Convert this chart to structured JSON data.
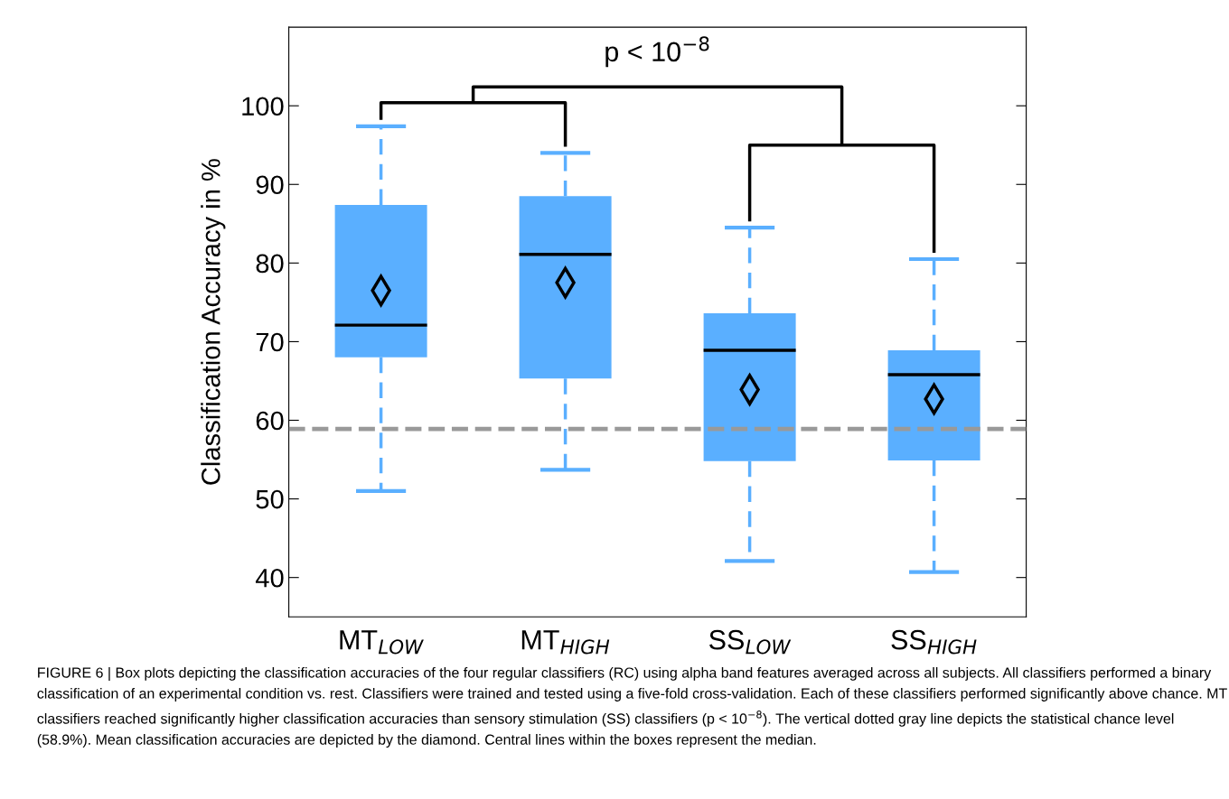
{
  "chart_data": {
    "type": "box",
    "ylabel": "Classification Accuracy in %",
    "categories": [
      "MT$_{LOW}$",
      "MT$_{HIGH}$",
      "SS$_{LOW}$",
      "SS$_{HIGH}$"
    ],
    "series": [
      {
        "color": "#5aafff",
        "boxes": [
          {
            "low": 51.0,
            "q1": 68.0,
            "median": 72.1,
            "q3": 87.4,
            "high": 97.4,
            "mean": 76.5
          },
          {
            "low": 53.7,
            "q1": 65.3,
            "median": 81.1,
            "q3": 88.5,
            "high": 94.0,
            "mean": 77.5
          },
          {
            "low": 42.1,
            "q1": 54.8,
            "median": 68.9,
            "q3": 73.6,
            "high": 84.5,
            "mean": 63.9
          },
          {
            "low": 40.7,
            "q1": 54.9,
            "median": 65.8,
            "q3": 68.9,
            "high": 80.5,
            "mean": 62.7
          }
        ]
      }
    ],
    "ylim": [
      35,
      110
    ],
    "yticks": [
      40,
      50,
      60,
      70,
      80,
      90,
      100
    ],
    "grid": false,
    "ref_lines": [
      {
        "axis": "y",
        "value": 58.9,
        "color": "#999999",
        "line_style": "dashed"
      }
    ],
    "annotations": [
      "p < 10$^{−8}$",
      "FIGURE 6 | Box plots depicting the classification accuracies of the four regular classifiers (RC) using alpha band features averaged across all subjects. All classifiers performed a binary classification of an experimental condition vs. rest. Classifiers were trained and tested using a five-fold cross-validation. Each of these classifiers performed significantly above chance. MT classifiers reached significantly higher classification accuracies than sensory stimulation (SS) classifiers (p < 10$^{−8}$). The vertical dotted gray line depicts the statistical chance level (58.9%). Mean classification accuracies are depicted by the diamond. Central lines within the boxes represent the median."
    ]
  }
}
